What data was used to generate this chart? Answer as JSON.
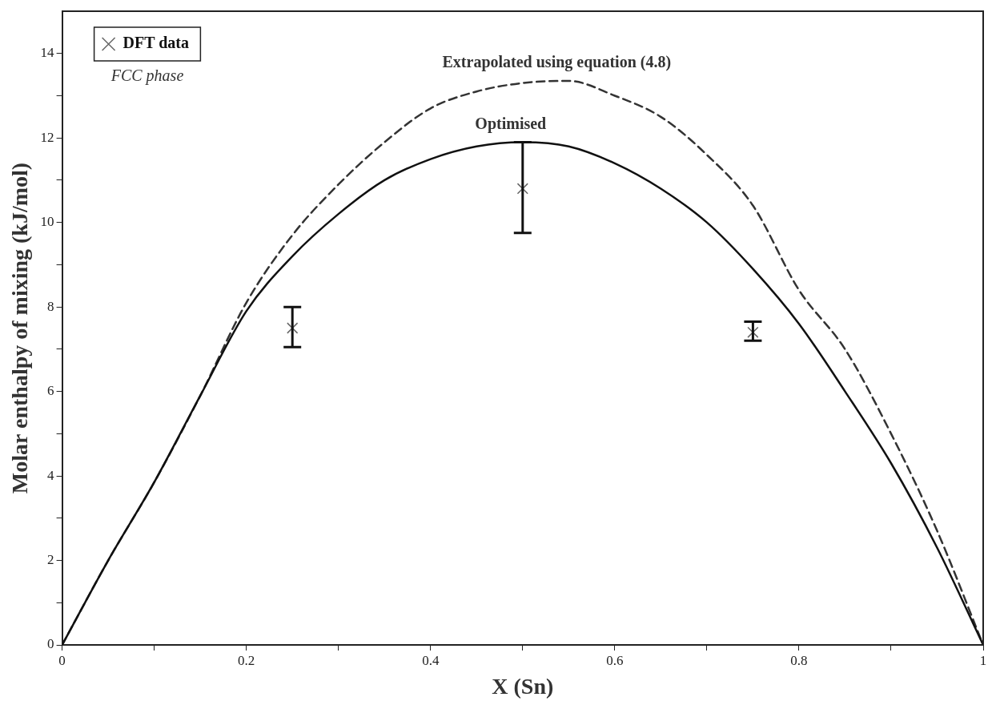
{
  "chart_data": {
    "type": "line",
    "xlabel": "X (Sn)",
    "ylabel": "Molar enthalpy of mixing (kJ/mol)",
    "xlim": [
      0,
      1
    ],
    "ylim": [
      0,
      15
    ],
    "xticks": [
      0,
      {
        "value": 0.1,
        "label": null
      },
      0.2,
      {
        "value": 0.3,
        "label": null
      },
      0.4,
      {
        "value": 0.5,
        "label": null
      },
      0.6,
      {
        "value": 0.7,
        "label": null
      },
      0.8,
      {
        "value": 0.9,
        "label": null
      },
      1
    ],
    "yticks": [
      0,
      {
        "value": 1,
        "label": null
      },
      2,
      {
        "value": 3,
        "label": null
      },
      4,
      {
        "value": 5,
        "label": null
      },
      6,
      {
        "value": 7,
        "label": null
      },
      8,
      {
        "value": 9,
        "label": null
      },
      10,
      {
        "value": 11,
        "label": null
      },
      12,
      {
        "value": 13,
        "label": null
      },
      14
    ],
    "grid": false,
    "legend": "top left",
    "series": [
      {
        "name": "Optimised",
        "color": "#111111",
        "line_style": "solid",
        "marker": "none",
        "x": [
          0,
          0.05,
          0.1,
          0.15,
          0.2,
          0.25,
          0.3,
          0.35,
          0.4,
          0.45,
          0.5,
          0.55,
          0.6,
          0.65,
          0.7,
          0.75,
          0.8,
          0.85,
          0.9,
          0.95,
          1
        ],
        "values": [
          0,
          2.0,
          3.85,
          5.9,
          7.9,
          9.2,
          10.2,
          11.0,
          11.5,
          11.8,
          11.9,
          11.8,
          11.4,
          10.8,
          10.0,
          8.9,
          7.6,
          6.0,
          4.3,
          2.3,
          0
        ]
      },
      {
        "name": "Extrapolated using equation (4.8)",
        "color": "#333333",
        "line_style": "dashed",
        "marker": "none",
        "x": [
          0,
          0.05,
          0.1,
          0.15,
          0.2,
          0.25,
          0.3,
          0.35,
          0.4,
          0.45,
          0.5,
          0.55,
          0.6,
          0.65,
          0.7,
          0.75,
          0.8,
          0.85,
          0.9,
          0.95,
          1
        ],
        "values": [
          0,
          2.0,
          3.85,
          5.9,
          8.1,
          9.7,
          10.9,
          11.9,
          12.7,
          13.1,
          13.3,
          13.35,
          13.0,
          12.5,
          11.6,
          10.4,
          8.4,
          7.0,
          5.0,
          2.7,
          0
        ]
      },
      {
        "type": "scatter",
        "name": "DFT data",
        "color": "#666666",
        "marker": "cross",
        "x": [
          0.25,
          0.5,
          0.75
        ],
        "values": [
          7.5,
          10.8,
          7.4
        ],
        "errors": [
          [
            7.05,
            8.0
          ],
          [
            9.75,
            11.9
          ],
          [
            7.2,
            7.65
          ]
        ]
      }
    ],
    "annotations": [
      "FCC phase"
    ]
  }
}
